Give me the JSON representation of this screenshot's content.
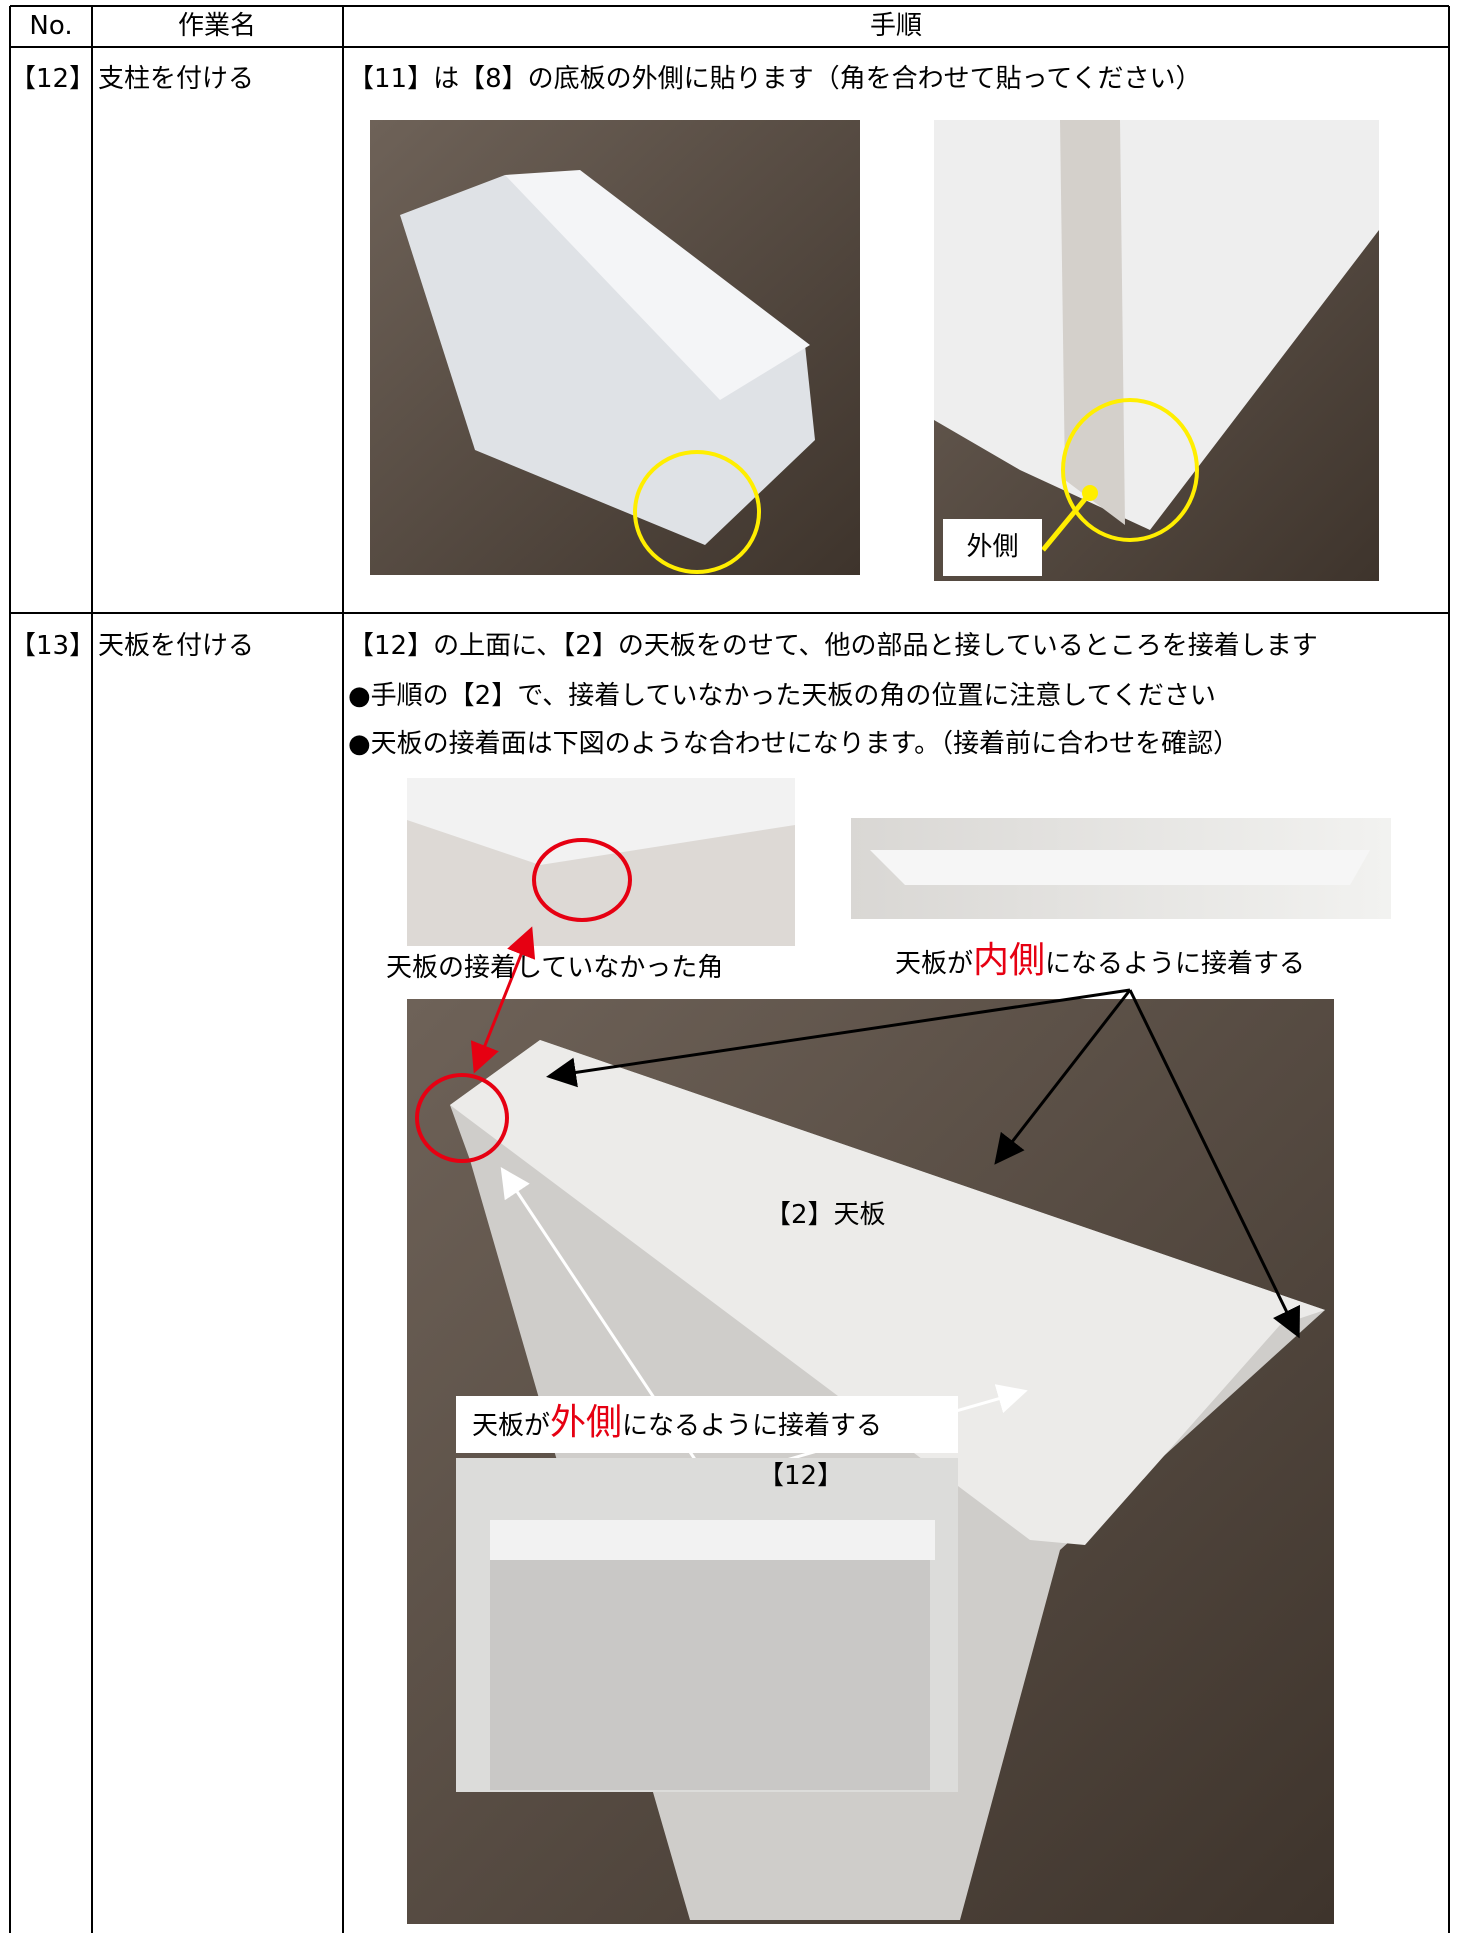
{
  "header": {
    "columns": [
      "No.",
      "作業名",
      "手順"
    ]
  },
  "rows": [
    {
      "no": "【12】",
      "name": "支柱を付ける",
      "steps": [
        "【11】は【8】の底板の外側に貼ります（角を合わせて貼ってください）"
      ],
      "labels": [
        "外側"
      ]
    },
    {
      "no": "【13】",
      "name": "天板を付ける",
      "steps": [
        "【12】の上面に、【2】の天板をのせて、他の部品と接しているところを接着します",
        "●手順の【2】で、接着していなかった天板の角の位置に注意してください",
        "●天板の接着面は下図のような合わせになります。（接着前に合わせを確認）"
      ],
      "labels": {
        "corner": "天板の接着していなかった角",
        "inner": [
          "天板が",
          "内側",
          "になるように接着する"
        ],
        "top": "【2】天板",
        "part": "【12】",
        "outer": [
          "天板が",
          "外側",
          "になるように接着する"
        ]
      }
    }
  ]
}
